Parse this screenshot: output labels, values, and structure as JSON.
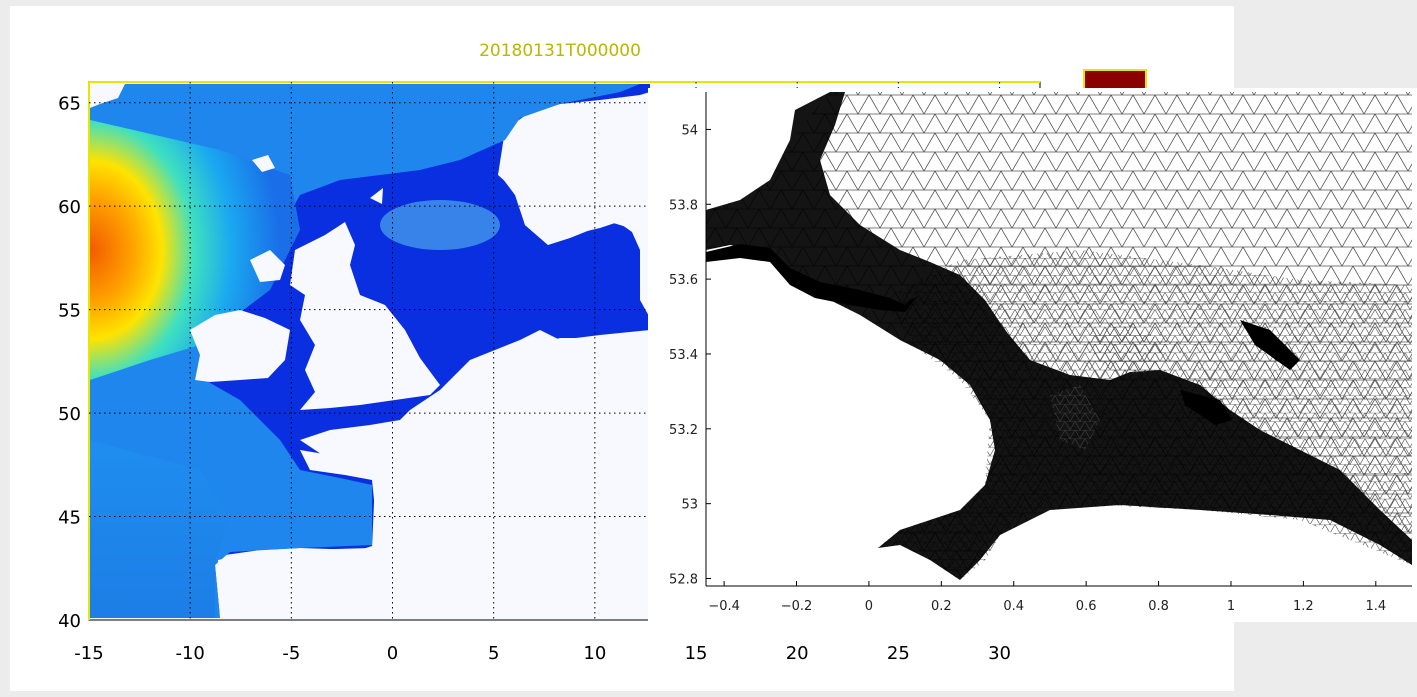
{
  "chart_data": [
    {
      "type": "heatmap",
      "title": "20180131T000000",
      "x_ticks": [
        -15,
        -10,
        -5,
        0,
        5,
        10,
        15,
        20,
        25,
        30
      ],
      "y_ticks": [
        40,
        45,
        50,
        55,
        60,
        65
      ],
      "xlim": [
        -15,
        32
      ],
      "ylim": [
        40,
        66
      ],
      "grid": true,
      "colors": {
        "ocean_low": "#0a2fe0",
        "ocean_mid": "#19b5f0",
        "ocean_high": "#ff6a00",
        "land": "#f8f8ff",
        "colorbar_top": "#8b0000",
        "title_color": "#b8b800"
      }
    },
    {
      "type": "mesh",
      "x_ticks": [
        -0.4,
        -0.2,
        0,
        0.2,
        0.4,
        0.6,
        0.8,
        1,
        1.2,
        1.4
      ],
      "y_ticks": [
        52.8,
        53,
        53.2,
        53.4,
        53.6,
        53.8,
        54
      ],
      "xlim": [
        -0.45,
        1.5
      ],
      "ylim": [
        52.78,
        54.1
      ],
      "colors": {
        "mesh_line": "#555555",
        "dense_mesh": "#000000"
      }
    }
  ]
}
